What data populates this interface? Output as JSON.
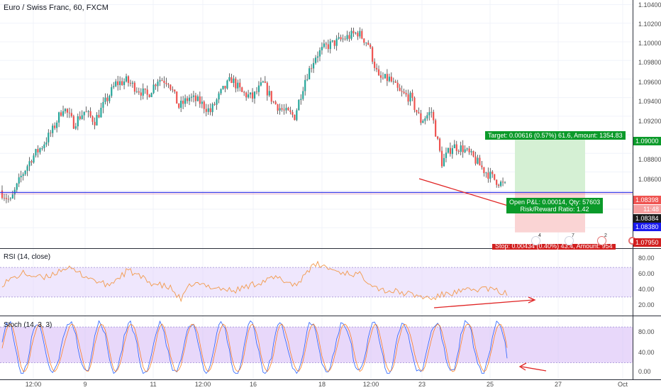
{
  "header": {
    "title": "Euro / Swiss Franc, 60, FXCM"
  },
  "indicators": {
    "rsi_label": "RSI (14, close)",
    "stoch_label": "Stoch (14, 3, 3)"
  },
  "position": {
    "target_label": "Target: 0.00616 (0.57%) 61.6, Amount: 1354.83",
    "open_pnl_label": "Open P&L: 0.00014, Qty: 57603",
    "risk_reward_label": "Risk/Reward Ratio: 1.42",
    "stop_label": "Stop: 0.00434 (0.40%) 43.4, Amount: 954",
    "colors": {
      "target": "#0b9a2a",
      "stop": "#d11f1f"
    }
  },
  "price_tags": {
    "target": "1.09000",
    "current": "1.08398",
    "countdown": "11:48",
    "line_a": "1.08384",
    "line_b": "1.08380",
    "stop": "1.07950"
  },
  "event_markers": [
    "4",
    "7",
    "2"
  ],
  "chart_data": [
    {
      "type": "candlestick",
      "title": "Euro / Swiss Franc, 60, FXCM",
      "ylim": [
        1.0778,
        1.1045
      ],
      "y_ticks": [
        "1.10400",
        "1.10200",
        "1.10000",
        "1.09800",
        "1.09600",
        "1.09400",
        "1.09200",
        "1.09000",
        "1.08800",
        "1.08600",
        "1.08398",
        "1.08384",
        "1.08380",
        "1.07950"
      ],
      "x_ticks": [
        "12:00",
        "9",
        "11",
        "12:00",
        "16",
        "18",
        "12:00",
        "23",
        "25",
        "27",
        "Oct"
      ],
      "horizontal_line": 1.0838,
      "trend_points": [
        [
          0,
          1.084
        ],
        [
          5,
          1.0828
        ],
        [
          10,
          1.0855
        ],
        [
          15,
          1.0875
        ],
        [
          20,
          1.0888
        ],
        [
          25,
          1.0905
        ],
        [
          30,
          1.093
        ],
        [
          35,
          1.0912
        ],
        [
          40,
          1.0925
        ],
        [
          45,
          1.0915
        ],
        [
          50,
          1.0935
        ],
        [
          55,
          1.0955
        ],
        [
          60,
          1.0958
        ],
        [
          65,
          1.095
        ],
        [
          70,
          1.0942
        ],
        [
          75,
          1.096
        ],
        [
          80,
          1.0958
        ],
        [
          85,
          1.093
        ],
        [
          90,
          1.094
        ],
        [
          95,
          1.0935
        ],
        [
          100,
          1.0925
        ],
        [
          105,
          1.0945
        ],
        [
          110,
          1.096
        ],
        [
          115,
          1.0945
        ],
        [
          120,
          1.094
        ],
        [
          125,
          1.0955
        ],
        [
          130,
          1.0935
        ],
        [
          135,
          1.0925
        ],
        [
          140,
          1.092
        ],
        [
          145,
          1.096
        ],
        [
          150,
          1.0985
        ],
        [
          155,
          1.0995
        ],
        [
          160,
          1.1
        ],
        [
          165,
          1.1005
        ],
        [
          170,
          1.101
        ],
        [
          175,
          1.0998
        ],
        [
          180,
          1.096
        ],
        [
          185,
          1.096
        ],
        [
          190,
          1.0945
        ],
        [
          195,
          1.094
        ],
        [
          200,
          1.0915
        ],
        [
          205,
          1.0925
        ],
        [
          210,
          1.087
        ],
        [
          215,
          1.0888
        ],
        [
          220,
          1.0885
        ],
        [
          225,
          1.0875
        ],
        [
          230,
          1.0862
        ],
        [
          235,
          1.0852
        ],
        [
          240,
          1.0845
        ]
      ]
    },
    {
      "type": "line",
      "title": "RSI (14, close)",
      "ylim": [
        5,
        95
      ],
      "y_ticks": [
        "80.00",
        "60.00",
        "40.00",
        "20.00"
      ],
      "band": [
        30,
        70
      ],
      "trend_points": [
        [
          0,
          48
        ],
        [
          10,
          62
        ],
        [
          20,
          55
        ],
        [
          30,
          70
        ],
        [
          40,
          58
        ],
        [
          50,
          45
        ],
        [
          60,
          66
        ],
        [
          70,
          50
        ],
        [
          80,
          42
        ],
        [
          85,
          26
        ],
        [
          90,
          48
        ],
        [
          100,
          44
        ],
        [
          110,
          38
        ],
        [
          120,
          48
        ],
        [
          130,
          56
        ],
        [
          140,
          46
        ],
        [
          145,
          66
        ],
        [
          150,
          74
        ],
        [
          160,
          64
        ],
        [
          170,
          60
        ],
        [
          180,
          40
        ],
        [
          190,
          36
        ],
        [
          200,
          30
        ],
        [
          205,
          28
        ],
        [
          210,
          34
        ],
        [
          220,
          38
        ],
        [
          230,
          42
        ],
        [
          240,
          34
        ]
      ]
    },
    {
      "type": "line",
      "title": "Stoch (14, 3, 3)",
      "ylim": [
        -8,
        98
      ],
      "y_ticks": [
        "80.00",
        "40.00",
        "0.00"
      ],
      "band": [
        20,
        80
      ]
    }
  ]
}
